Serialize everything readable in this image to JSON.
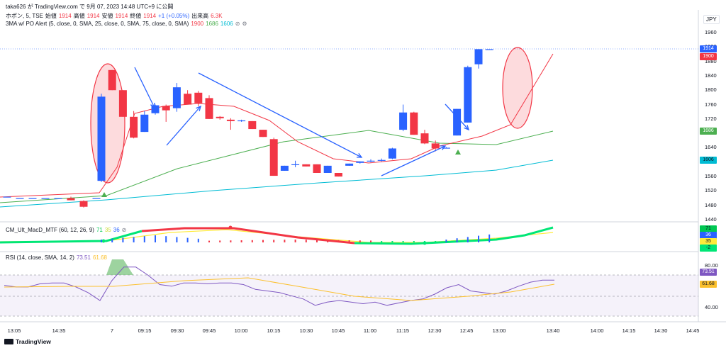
{
  "header": {
    "publish_line": "taka626 が TradingView.com で 9月 07, 2023 14:48 UTC+9 に公開",
    "symbol": "ホポン, 5, TSE",
    "open_label": "始値",
    "open": "1914",
    "high_label": "高値",
    "high": "1914",
    "low_label": "安値",
    "low": "1914",
    "close_label": "終値",
    "close": "1914",
    "change": "+1 (+0.05%)",
    "volume_label": "出来高",
    "volume": "6.3K"
  },
  "currency": "JPY",
  "indicator_3ma": {
    "label": "3MA w/ PO Alert (5, close, 0, SMA, 25, close, 0, SMA, 75, close, 0, SMA)",
    "v1": "1900",
    "v2": "1686",
    "v3": "1606",
    "colors": {
      "v1": "#f23645",
      "v2": "#4caf50",
      "v3": "#00bcd4"
    }
  },
  "indicator_macd": {
    "label": "CM_Ult_MacD_MTF (60, 12, 26, 9)",
    "v1": "71",
    "v2": "35",
    "v3": "36",
    "badges": [
      "71",
      "36",
      "35",
      "-2"
    ]
  },
  "indicator_rsi": {
    "label": "RSI (14, close, SMA, 14, 2)",
    "v1": "73.51",
    "v2": "61.68",
    "axis": [
      "80.00",
      "40.00"
    ]
  },
  "price_axis": [
    "1960",
    "1920",
    "1880",
    "1840",
    "1800",
    "1760",
    "1720",
    "1680",
    "1640",
    "1600",
    "1560",
    "1520",
    "1480",
    "1440"
  ],
  "price_badges": {
    "last": "1914",
    "ma1": "1900",
    "ma2": "1686",
    "ma3": "1606"
  },
  "time_axis": [
    "13:05",
    "14:35",
    "7",
    "09:15",
    "09:30",
    "09:45",
    "10:00",
    "10:15",
    "10:30",
    "10:45",
    "11:00",
    "11:15",
    "12:30",
    "12:45",
    "13:00",
    "13:40",
    "14:00",
    "14:15",
    "14:30",
    "14:45"
  ],
  "footer": {
    "brand": "TradingView"
  },
  "colors": {
    "up": "#2962ff",
    "down": "#f23645",
    "arrow": "#2962ff",
    "ellipse": "#f23645",
    "grid": "#e0e3eb"
  },
  "chart_data": {
    "type": "candlestick",
    "candles": [
      [
        1504,
        1504,
        1504,
        1504
      ],
      [
        1500,
        1500,
        1500,
        1500
      ],
      [
        1500,
        1500,
        1500,
        1500
      ],
      [
        1500,
        1500,
        1500,
        1500
      ],
      [
        1500,
        1500,
        1500,
        1500
      ],
      [
        1500,
        1504,
        1494,
        1494
      ],
      [
        1492,
        1494,
        1474,
        1476
      ],
      [
        1500,
        1500,
        1500,
        1500
      ],
      [
        1548,
        1790,
        1545,
        1782
      ],
      [
        1856,
        1856,
        1800,
        1800
      ],
      [
        1800,
        1800,
        1726,
        1726
      ],
      [
        1726,
        1742,
        1666,
        1668
      ],
      [
        1684,
        1742,
        1684,
        1732
      ],
      [
        1736,
        1760,
        1732,
        1758
      ],
      [
        1756,
        1760,
        1712,
        1744
      ],
      [
        1750,
        1820,
        1740,
        1808
      ],
      [
        1790,
        1800,
        1760,
        1760
      ],
      [
        1793,
        1798,
        1755,
        1764
      ],
      [
        1778,
        1786,
        1720,
        1720
      ],
      [
        1726,
        1728,
        1718,
        1722
      ],
      [
        1718,
        1722,
        1690,
        1714
      ],
      [
        1716,
        1718,
        1712,
        1716
      ],
      [
        1714,
        1714,
        1692,
        1692
      ],
      [
        1690,
        1690,
        1670,
        1670
      ],
      [
        1664,
        1668,
        1562,
        1562
      ],
      [
        1576,
        1590,
        1576,
        1590
      ],
      [
        1592,
        1604,
        1586,
        1594
      ],
      [
        1594,
        1594,
        1588,
        1588
      ],
      [
        1594,
        1594,
        1570,
        1570
      ],
      [
        1570,
        1590,
        1570,
        1590
      ],
      [
        1570,
        1570,
        1560,
        1560
      ],
      [
        1590,
        1596,
        1590,
        1596
      ],
      [
        1598,
        1602,
        1596,
        1602
      ],
      [
        1604,
        1608,
        1600,
        1604
      ],
      [
        1606,
        1610,
        1602,
        1606
      ],
      [
        1610,
        1640,
        1608,
        1638
      ],
      [
        1690,
        1760,
        1686,
        1738
      ],
      [
        1738,
        1740,
        1676,
        1676
      ],
      [
        1680,
        1690,
        1650,
        1652
      ],
      [
        1652,
        1660,
        1630,
        1638
      ],
      [
        1640,
        1642,
        1640,
        1640
      ],
      [
        1674,
        1748,
        1674,
        1748
      ],
      [
        1710,
        1868,
        1710,
        1864
      ],
      [
        1872,
        1914,
        1860,
        1914
      ],
      [
        1914,
        1914,
        1914,
        1914
      ]
    ],
    "ma_values": {
      "ma1": 1900,
      "ma2": 1686,
      "ma3": 1606
    },
    "macd_values": {
      "v1": 71,
      "v2": 35,
      "v3": 36,
      "hist": -2
    },
    "rsi": [
      67,
      65,
      65,
      69,
      70,
      70,
      65,
      58,
      48,
      73,
      90,
      90,
      80,
      68,
      66,
      70,
      70,
      69,
      70,
      70,
      68,
      62,
      60,
      58,
      54,
      50,
      42,
      46,
      48,
      46,
      44,
      46,
      42,
      45,
      48,
      50,
      56,
      64,
      68,
      60,
      58,
      56,
      60,
      66,
      71,
      73.5,
      73.5
    ],
    "rsi_ma": 61.68,
    "rsi_last": 73.51
  }
}
